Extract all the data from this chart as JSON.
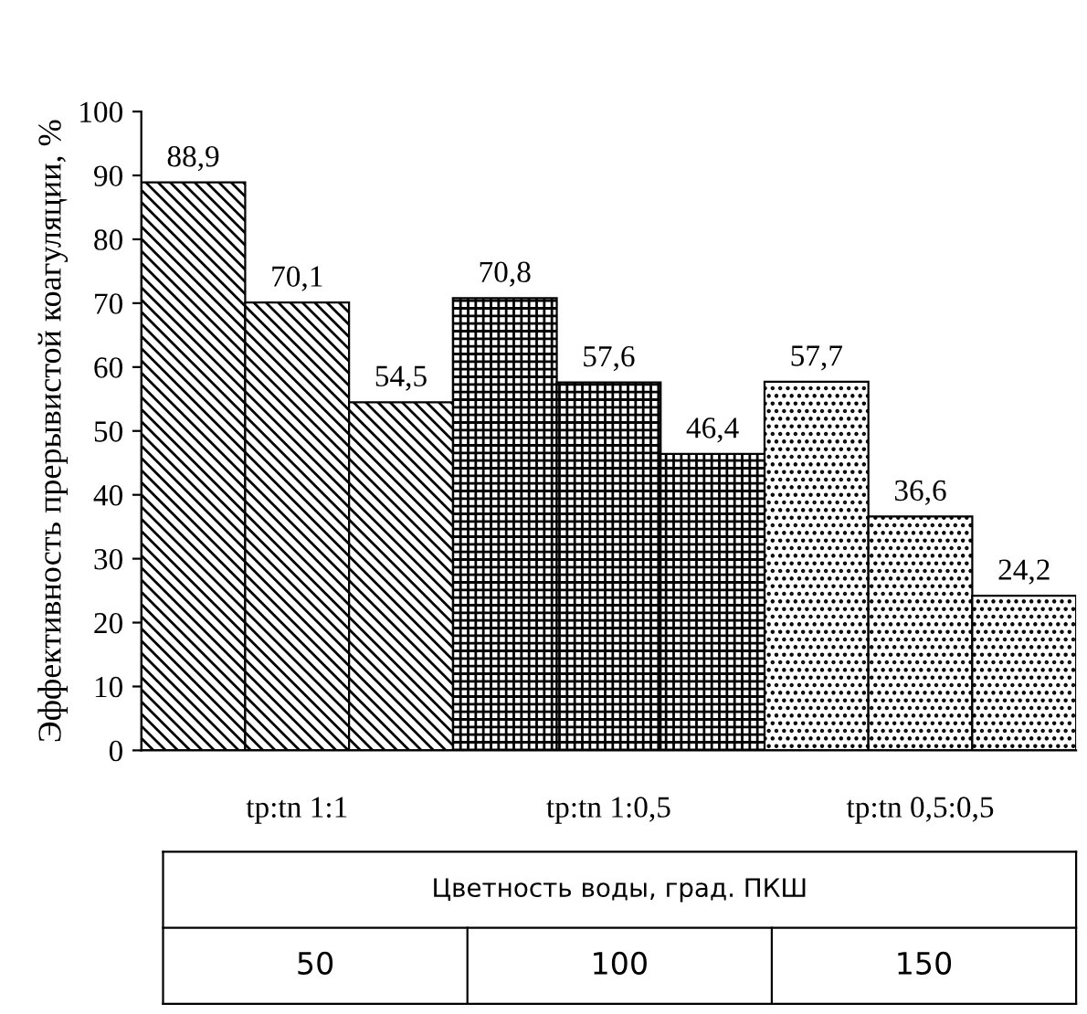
{
  "chart_data": {
    "type": "bar",
    "ylabel": "Эффективность прерывистой коагуляции, %",
    "categories": [
      "tp:tn 1:1",
      "tp:tn 1:0,5",
      "tp:tn 0,5:0,5"
    ],
    "series": [
      {
        "color": "#000000",
        "values": [
          88.9,
          70.8,
          57.7
        ],
        "value_labels": [
          "88,9",
          "70,8",
          "57,7"
        ]
      },
      {
        "color": "#000000",
        "values": [
          70.1,
          57.6,
          36.6
        ],
        "value_labels": [
          "70,1",
          "57,6",
          "36,6"
        ]
      },
      {
        "color": "#000000",
        "values": [
          54.5,
          46.4,
          24.2
        ],
        "value_labels": [
          "54,5",
          "46,4",
          "24,2"
        ]
      }
    ],
    "ylim": [
      0,
      100
    ],
    "yticks": [
      0,
      10,
      20,
      30,
      40,
      50,
      60,
      70,
      80,
      90,
      100
    ],
    "grid": false,
    "legend": false,
    "annotations": [
      "Цветность воды, град. ПКШ",
      "50",
      "100",
      "150"
    ]
  }
}
